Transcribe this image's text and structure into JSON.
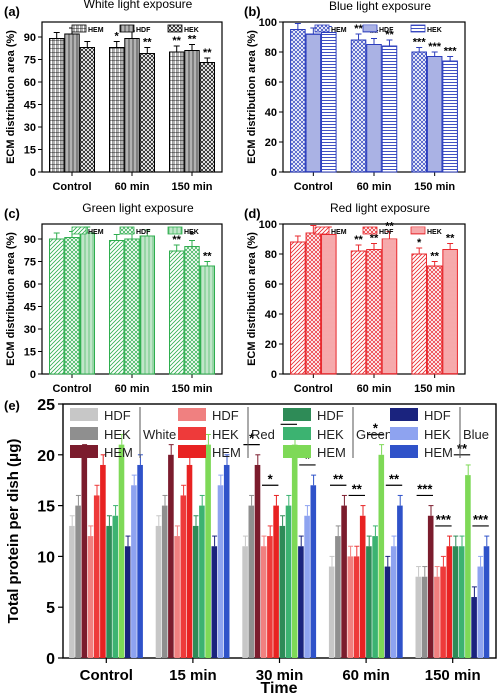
{
  "chart_data": [
    {
      "type": "bar",
      "panel_label": "(a)",
      "title": "White light exposure",
      "ylabel": "ECM distribution area (%)",
      "xlabel": "",
      "categories": [
        "Control",
        "60 min",
        "150 min"
      ],
      "ylim": [
        0,
        100
      ],
      "yticks": [
        0,
        15,
        30,
        45,
        60,
        75,
        90
      ],
      "legend_position": "top-right",
      "colors": {
        "stroke": "#000000"
      },
      "patterns": [
        "grid",
        "vlines",
        "crosshatch"
      ],
      "series": [
        {
          "name": "HEM",
          "values": [
            89,
            83,
            80
          ],
          "errors": [
            4,
            4,
            4
          ]
        },
        {
          "name": "HDF",
          "values": [
            92,
            89,
            81
          ],
          "errors": [
            4,
            5,
            4
          ]
        },
        {
          "name": "HEK",
          "values": [
            83,
            79,
            73
          ],
          "errors": [
            4,
            4,
            3
          ]
        }
      ],
      "annotations": [
        [
          "",
          "",
          ""
        ],
        [
          "*",
          "",
          "**"
        ],
        [
          "**",
          "**",
          "**"
        ]
      ]
    },
    {
      "type": "bar",
      "panel_label": "(b)",
      "title": "Blue light exposure",
      "ylabel": "ECM distribution area (%)",
      "xlabel": "",
      "categories": [
        "Control",
        "60 min",
        "150 min"
      ],
      "ylim": [
        0,
        100
      ],
      "yticks": [
        0,
        20,
        40,
        60,
        80,
        100
      ],
      "legend_position": "top-right",
      "colors": {
        "stroke": "#2b3dbd"
      },
      "patterns": [
        "crosshatch",
        "hlines",
        "hlines-wide"
      ],
      "series": [
        {
          "name": "HEM",
          "values": [
            95,
            88,
            80
          ],
          "errors": [
            4,
            4,
            3
          ]
        },
        {
          "name": "HDF",
          "values": [
            92,
            85,
            77
          ],
          "errors": [
            4,
            4,
            3
          ]
        },
        {
          "name": "HEK",
          "values": [
            93,
            84,
            74
          ],
          "errors": [
            4,
            4,
            3
          ]
        }
      ],
      "annotations": [
        [
          "",
          "",
          ""
        ],
        [
          "**",
          "**",
          "**"
        ],
        [
          "***",
          "***",
          "***"
        ]
      ]
    },
    {
      "type": "bar",
      "panel_label": "(c)",
      "title": "Green light exposure",
      "ylabel": "ECM distribution area (%)",
      "xlabel": "",
      "categories": [
        "Control",
        "60 min",
        "150 min"
      ],
      "ylim": [
        0,
        100
      ],
      "yticks": [
        0,
        15,
        30,
        45,
        60,
        75,
        90
      ],
      "legend_position": "top-right",
      "colors": {
        "stroke": "#2fae4f"
      },
      "patterns": [
        "diag",
        "crosshatch",
        "vlines"
      ],
      "series": [
        {
          "name": "HEM",
          "values": [
            90,
            89,
            82
          ],
          "errors": [
            4,
            4,
            4
          ]
        },
        {
          "name": "HDF",
          "values": [
            91,
            90,
            85
          ],
          "errors": [
            4,
            4,
            4
          ]
        },
        {
          "name": "HEK",
          "values": [
            94,
            92,
            72
          ],
          "errors": [
            4,
            4,
            3
          ]
        }
      ],
      "annotations": [
        [
          "",
          "",
          ""
        ],
        [
          "",
          "",
          ""
        ],
        [
          "**",
          "*",
          "**"
        ]
      ]
    },
    {
      "type": "bar",
      "panel_label": "(d)",
      "title": "Red light exposure",
      "ylabel": "ECM distribution area (%)",
      "xlabel": "",
      "categories": [
        "Control",
        "60 min",
        "150 min"
      ],
      "ylim": [
        0,
        100
      ],
      "yticks": [
        0,
        20,
        40,
        60,
        80,
        100
      ],
      "legend_position": "top-right",
      "colors": {
        "stroke": "#e8282d"
      },
      "patterns": [
        "diag",
        "crosshatch",
        "hlines"
      ],
      "series": [
        {
          "name": "HEM",
          "values": [
            88,
            82,
            80
          ],
          "errors": [
            4,
            4,
            4
          ]
        },
        {
          "name": "HDF",
          "values": [
            94,
            83,
            72
          ],
          "errors": [
            5,
            4,
            3
          ]
        },
        {
          "name": "HEK",
          "values": [
            93,
            90,
            83
          ],
          "errors": [
            5,
            5,
            4
          ]
        }
      ],
      "annotations": [
        [
          "",
          "",
          ""
        ],
        [
          "**",
          "**",
          "**"
        ],
        [
          "*",
          "**",
          "**"
        ]
      ]
    },
    {
      "type": "bar",
      "panel_label": "(e)",
      "title": "",
      "ylabel": "Total protein per dish (μg)",
      "xlabel": "Time",
      "categories": [
        "Control",
        "15 min",
        "30 min",
        "60 min",
        "150 min"
      ],
      "ylim": [
        0,
        25
      ],
      "yticks": [
        0,
        5,
        10,
        15,
        20,
        25
      ],
      "legend_position": "top",
      "group_labels": [
        "White",
        "Red",
        "Green",
        "Blue"
      ],
      "series": [
        {
          "name": "HDF",
          "group": "White",
          "color": "#c7c7c7",
          "values": [
            13,
            13,
            11,
            9,
            8
          ]
        },
        {
          "name": "HEK",
          "group": "White",
          "color": "#8f8f8f",
          "values": [
            15,
            15,
            15,
            12,
            8
          ]
        },
        {
          "name": "HEM",
          "group": "White",
          "color": "#7b1c2d",
          "values": [
            20,
            20,
            19,
            15,
            14
          ]
        },
        {
          "name": "HDF",
          "group": "Red",
          "color": "#f08080",
          "values": [
            12,
            12,
            11,
            10,
            8
          ]
        },
        {
          "name": "HEK",
          "group": "Red",
          "color": "#ee3a3a",
          "values": [
            16,
            16,
            12,
            10,
            9
          ]
        },
        {
          "name": "HEM",
          "group": "Red",
          "color": "#e82222",
          "values": [
            19,
            19,
            15,
            14,
            11
          ]
        },
        {
          "name": "HDF",
          "group": "Green",
          "color": "#2e8b57",
          "values": [
            13,
            13,
            13,
            11,
            11
          ]
        },
        {
          "name": "HEK",
          "group": "Green",
          "color": "#3cb371",
          "values": [
            14,
            15,
            15,
            12,
            11
          ]
        },
        {
          "name": "HEM",
          "group": "Green",
          "color": "#7ed957",
          "values": [
            21,
            21,
            21,
            20,
            18
          ]
        },
        {
          "name": "HDF",
          "group": "Blue",
          "color": "#1a237e",
          "values": [
            11,
            11,
            11,
            9,
            6
          ]
        },
        {
          "name": "HEK",
          "group": "Blue",
          "color": "#8ea3f0",
          "values": [
            17,
            17,
            14,
            11,
            9
          ]
        },
        {
          "name": "HEM",
          "group": "Blue",
          "color": "#2f52c9",
          "values": [
            19,
            19,
            17,
            15,
            11
          ]
        }
      ],
      "significance": [
        [],
        [],
        [
          [
            "*",
            0,
            2
          ],
          [
            "*",
            3,
            5
          ],
          [
            "*",
            6,
            8
          ],
          [
            "*",
            9,
            11
          ]
        ],
        [
          [
            "**",
            0,
            2
          ],
          [
            "**",
            3,
            5
          ],
          [
            "*",
            6,
            8
          ],
          [
            "**",
            9,
            11
          ]
        ],
        [
          [
            "***",
            0,
            2
          ],
          [
            "***",
            3,
            5
          ],
          [
            "**",
            6,
            8
          ],
          [
            "***",
            9,
            11
          ]
        ]
      ]
    }
  ]
}
